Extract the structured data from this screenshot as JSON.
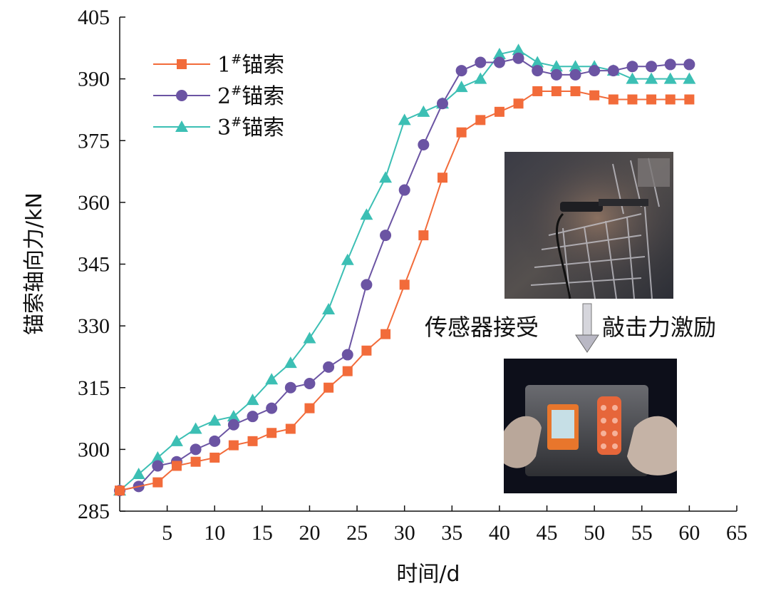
{
  "chart_data": {
    "type": "line",
    "xlabel": "时间/d",
    "ylabel": "锚索轴向力/kN",
    "xlim": [
      0,
      65
    ],
    "ylim": [
      285,
      405
    ],
    "xticks": [
      5,
      10,
      15,
      20,
      25,
      30,
      35,
      40,
      45,
      50,
      55,
      60,
      65
    ],
    "yticks": [
      285,
      300,
      315,
      330,
      345,
      360,
      375,
      390,
      405
    ],
    "grid": false,
    "legend_position": "top-left",
    "series": [
      {
        "name": "1#锚索",
        "legend_main": "1",
        "legend_sup": "#",
        "legend_tail": "锚索",
        "color": "#f26b3a",
        "marker": "square",
        "x": [
          0,
          4,
          6,
          8,
          10,
          12,
          14,
          16,
          18,
          20,
          22,
          24,
          26,
          28,
          30,
          32,
          34,
          36,
          38,
          40,
          42,
          44,
          46,
          48,
          50,
          52,
          54,
          56,
          58,
          60
        ],
        "y": [
          290,
          292,
          296,
          297,
          298,
          301,
          302,
          304,
          305,
          310,
          315,
          319,
          324,
          328,
          340,
          352,
          366,
          377,
          380,
          382,
          384,
          387,
          387,
          387,
          386,
          385,
          385,
          385,
          385,
          385
        ]
      },
      {
        "name": "2#锚索",
        "legend_main": "2",
        "legend_sup": "#",
        "legend_tail": "锚索",
        "color": "#6b54a3",
        "marker": "circle",
        "x": [
          0,
          2,
          4,
          6,
          8,
          10,
          12,
          14,
          16,
          18,
          20,
          22,
          24,
          26,
          28,
          30,
          32,
          34,
          36,
          38,
          40,
          42,
          44,
          46,
          48,
          50,
          52,
          54,
          56,
          58,
          60
        ],
        "y": [
          290,
          291,
          296,
          297,
          300,
          302,
          306,
          308,
          310,
          315,
          316,
          320,
          323,
          340,
          352,
          363,
          374,
          384,
          392,
          394,
          394,
          395,
          392,
          391,
          391,
          392,
          392,
          393,
          393,
          393.5,
          393.5
        ]
      },
      {
        "name": "3#锚索",
        "legend_main": "3",
        "legend_sup": "#",
        "legend_tail": "锚索",
        "color": "#3cbfb4",
        "marker": "triangle",
        "x": [
          0,
          2,
          4,
          6,
          8,
          10,
          12,
          14,
          16,
          18,
          20,
          22,
          24,
          26,
          28,
          30,
          32,
          34,
          36,
          38,
          40,
          42,
          44,
          46,
          48,
          50,
          52,
          54,
          56,
          58,
          60
        ],
        "y": [
          290,
          294,
          298,
          302,
          305,
          307,
          308,
          312,
          317,
          321,
          327,
          334,
          346,
          357,
          366,
          380,
          382,
          384,
          388,
          390,
          396,
          397,
          394,
          393,
          393,
          393,
          392,
          390,
          390,
          390,
          390
        ]
      }
    ],
    "annotations": {
      "caption_left": "传感器接受",
      "caption_right": "敲击力激励"
    }
  }
}
